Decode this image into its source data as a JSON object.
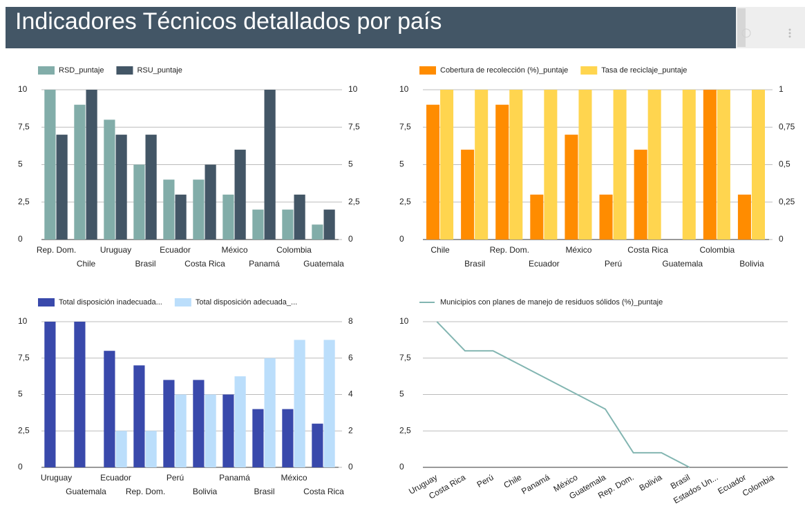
{
  "header": {
    "title": "Indicadores Técnicos detallados por país"
  },
  "chart_data": [
    {
      "type": "bar",
      "categories": [
        "Rep. Dom.",
        "Chile",
        "Uruguay",
        "Brasil",
        "Ecuador",
        "Costa Rica",
        "México",
        "Panamá",
        "Colombia",
        "Guatemala"
      ],
      "series": [
        {
          "name": "RSD_puntaje",
          "color": "#82ada9",
          "values": [
            10,
            9,
            8,
            5,
            4,
            4,
            3,
            2,
            2,
            1
          ]
        },
        {
          "name": "RSU_puntaje",
          "color": "#435666",
          "axis": "y2",
          "values": [
            7,
            10,
            7,
            7,
            3,
            5,
            6,
            10,
            3,
            2
          ]
        }
      ],
      "ylim": [
        0,
        10
      ],
      "yticks": [
        0,
        {
          "value": 2.5,
          "label": "2,5"
        },
        5,
        {
          "value": 7.5,
          "label": "7,5"
        },
        10
      ],
      "y2lim": [
        0,
        10
      ],
      "y2ticks": [
        0,
        {
          "value": 2.5,
          "label": "2,5"
        },
        5,
        {
          "value": 7.5,
          "label": "7,5"
        },
        10
      ],
      "grid": true
    },
    {
      "type": "bar",
      "categories": [
        "Chile",
        "Brasil",
        "Rep. Dom.",
        "Ecuador",
        "México",
        "Perú",
        "Costa Rica",
        "Guatemala",
        "Colombia",
        "Bolivia"
      ],
      "series": [
        {
          "name": "Cobertura de recolección (%)_puntaje",
          "color": "#ff8c00",
          "values": [
            9,
            6,
            9,
            3,
            7,
            3,
            6,
            null,
            10,
            3
          ]
        },
        {
          "name": "Tasa de reciclaje_puntaje",
          "color": "#ffd54f",
          "axis": "y2",
          "values": [
            1,
            1,
            1,
            1,
            1,
            1,
            1,
            1,
            1,
            1
          ]
        }
      ],
      "ylim": [
        0,
        10
      ],
      "yticks": [
        0,
        {
          "value": 2.5,
          "label": "2,5"
        },
        5,
        {
          "value": 7.5,
          "label": "7,5"
        },
        10
      ],
      "y2lim": [
        0,
        1
      ],
      "y2ticks": [
        0,
        {
          "value": 0.25,
          "label": "0,25"
        },
        {
          "value": 0.5,
          "label": "0,5"
        },
        {
          "value": 0.75,
          "label": "0,75"
        },
        1
      ],
      "grid": true
    },
    {
      "type": "bar",
      "categories": [
        "Uruguay",
        "Guatemala",
        "Ecuador",
        "Rep. Dom.",
        "Perú",
        "Bolivia",
        "Panamá",
        "Brasil",
        "México",
        "Costa Rica"
      ],
      "series": [
        {
          "name": "Total disposición inadecuada...",
          "color": "#3949ab",
          "values": [
            10,
            10,
            8,
            7,
            6,
            6,
            5,
            4,
            4,
            3
          ]
        },
        {
          "name": "Total disposición adecuada_...",
          "color": "#bbdefb",
          "axis": "y2",
          "values": [
            null,
            null,
            2,
            2,
            4,
            4,
            5,
            6,
            7,
            7
          ]
        }
      ],
      "ylim": [
        0,
        10
      ],
      "yticks": [
        0,
        {
          "value": 2.5,
          "label": "2,5"
        },
        5,
        {
          "value": 7.5,
          "label": "7,5"
        },
        10
      ],
      "y2lim": [
        0,
        8
      ],
      "y2ticks": [
        0,
        2,
        4,
        6,
        8
      ],
      "grid": true
    },
    {
      "type": "line",
      "categories": [
        "Uruguay",
        "Costa Rica",
        "Perú",
        "Chile",
        "Panamá",
        "México",
        "Guatemala",
        "Rep. Dom.",
        "Bolivia",
        "Brasil",
        "Estados Un...",
        "Ecuador",
        "Colombia"
      ],
      "series": [
        {
          "name": "Municipios con planes de manejo de residuos sólidos (%)_puntaje",
          "color": "#82b5b1",
          "values": [
            10,
            8,
            8,
            7,
            6,
            5,
            4,
            1,
            1,
            0,
            null,
            null,
            null
          ]
        }
      ],
      "ylim": [
        0,
        10
      ],
      "yticks": [
        0,
        {
          "value": 2.5,
          "label": "2,5"
        },
        5,
        {
          "value": 7.5,
          "label": "7,5"
        },
        10
      ],
      "grid": true
    }
  ]
}
